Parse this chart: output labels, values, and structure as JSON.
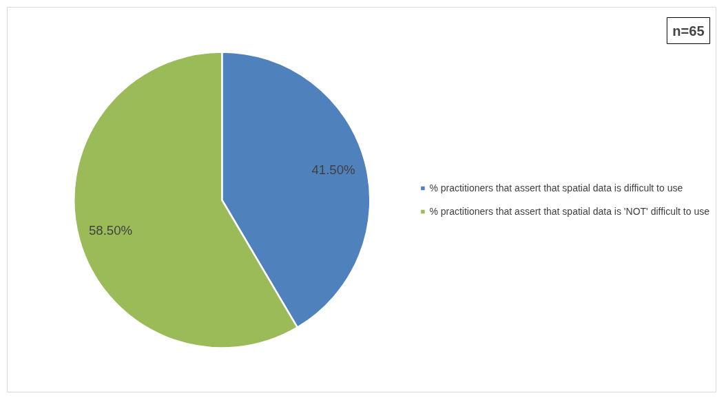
{
  "chart_data": {
    "type": "pie",
    "categories": [
      "% practitioners that assert that spatial data is difficult to use",
      "% practitioners that assert that spatial data is 'NOT' difficult to use"
    ],
    "values": [
      41.5,
      58.5
    ],
    "colors": [
      "#4f81bd",
      "#9bbb59"
    ],
    "value_labels": [
      "41.50%",
      "58.50%"
    ],
    "legend": "right",
    "annotations": [
      "n=65"
    ]
  }
}
